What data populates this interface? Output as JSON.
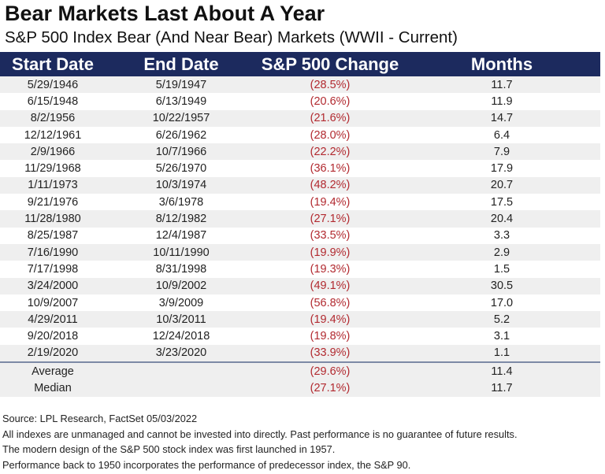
{
  "title": "Bear Markets Last About A Year",
  "subtitle": "S&P 500 Index Bear (And Near Bear) Markets (WWII - Current)",
  "chart_data": {
    "type": "table",
    "columns": [
      "Start Date",
      "End Date",
      "S&P 500 Change",
      "Months"
    ],
    "rows": [
      [
        "5/29/1946",
        "5/19/1947",
        "(28.5%)",
        "11.7"
      ],
      [
        "6/15/1948",
        "6/13/1949",
        "(20.6%)",
        "11.9"
      ],
      [
        "8/2/1956",
        "10/22/1957",
        "(21.6%)",
        "14.7"
      ],
      [
        "12/12/1961",
        "6/26/1962",
        "(28.0%)",
        "6.4"
      ],
      [
        "2/9/1966",
        "10/7/1966",
        "(22.2%)",
        "7.9"
      ],
      [
        "11/29/1968",
        "5/26/1970",
        "(36.1%)",
        "17.9"
      ],
      [
        "1/11/1973",
        "10/3/1974",
        "(48.2%)",
        "20.7"
      ],
      [
        "9/21/1976",
        "3/6/1978",
        "(19.4%)",
        "17.5"
      ],
      [
        "11/28/1980",
        "8/12/1982",
        "(27.1%)",
        "20.4"
      ],
      [
        "8/25/1987",
        "12/4/1987",
        "(33.5%)",
        "3.3"
      ],
      [
        "7/16/1990",
        "10/11/1990",
        "(19.9%)",
        "2.9"
      ],
      [
        "7/17/1998",
        "8/31/1998",
        "(19.3%)",
        "1.5"
      ],
      [
        "3/24/2000",
        "10/9/2002",
        "(49.1%)",
        "30.5"
      ],
      [
        "10/9/2007",
        "3/9/2009",
        "(56.8%)",
        "17.0"
      ],
      [
        "4/29/2011",
        "10/3/2011",
        "(19.4%)",
        "5.2"
      ],
      [
        "9/20/2018",
        "12/24/2018",
        "(19.8%)",
        "3.1"
      ],
      [
        "2/19/2020",
        "3/23/2020",
        "(33.9%)",
        "1.1"
      ]
    ],
    "summary": [
      [
        "Average",
        "",
        "(29.6%)",
        "11.4"
      ],
      [
        "Median",
        "",
        "(27.1%)",
        "11.7"
      ]
    ],
    "colors": {
      "header_bg": "#1c2a5e",
      "negative": "#b22a30",
      "stripe": "#efefef"
    }
  },
  "footer": [
    "Source: LPL Research, FactSet 05/03/2022",
    "All indexes are unmanaged and cannot be invested into directly. Past performance is no guarantee of future results.",
    "The modern design of the S&P 500 stock index was first launched in 1957.",
    "Performance back to 1950 incorporates the performance of predecessor index, the S&P 90."
  ]
}
